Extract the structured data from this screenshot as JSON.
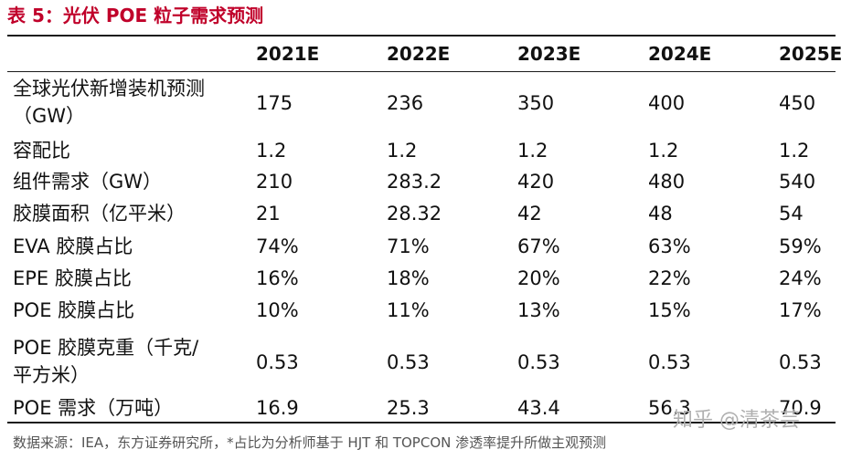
{
  "title": "表 5：光伏 POE 粒子需求预测",
  "columns": [
    "2021E",
    "2022E",
    "2023E",
    "2024E",
    "2025E"
  ],
  "rows": [
    {
      "label_lines": [
        "全球光伏新增装机预测",
        "（GW）"
      ],
      "values": [
        "175",
        "236",
        "350",
        "400",
        "450"
      ]
    },
    {
      "label_lines": [
        "容配比"
      ],
      "values": [
        "1.2",
        "1.2",
        "1.2",
        "1.2",
        "1.2"
      ]
    },
    {
      "label_lines": [
        "组件需求（GW）"
      ],
      "values": [
        "210",
        "283.2",
        "420",
        "480",
        "540"
      ]
    },
    {
      "label_lines": [
        "胶膜面积（亿平米）"
      ],
      "values": [
        "21",
        "28.32",
        "42",
        "48",
        "54"
      ]
    },
    {
      "label_lines": [
        "EVA 胶膜占比"
      ],
      "values": [
        "74%",
        "71%",
        "67%",
        "63%",
        "59%"
      ]
    },
    {
      "label_lines": [
        "EPE 胶膜占比"
      ],
      "values": [
        "16%",
        "18%",
        "20%",
        "22%",
        "24%"
      ]
    },
    {
      "label_lines": [
        "POE 胶膜占比"
      ],
      "values": [
        "10%",
        "11%",
        "13%",
        "15%",
        "17%"
      ]
    },
    {
      "label_lines": [
        "POE  胶膜克重（千克/",
        "平方米）"
      ],
      "values": [
        "0.53",
        "0.53",
        "0.53",
        "0.53",
        "0.53"
      ]
    },
    {
      "label_lines": [
        "POE 需求（万吨）"
      ],
      "values": [
        "16.9",
        "25.3",
        "43.4",
        "56.3",
        "70.9"
      ]
    }
  ],
  "source": "数据来源：IEA，东方证券研究所，*占比为分析师基于 HJT 和 TOPCON 渗透率提升所做主观预测",
  "watermark": "知乎 @清茶芸"
}
